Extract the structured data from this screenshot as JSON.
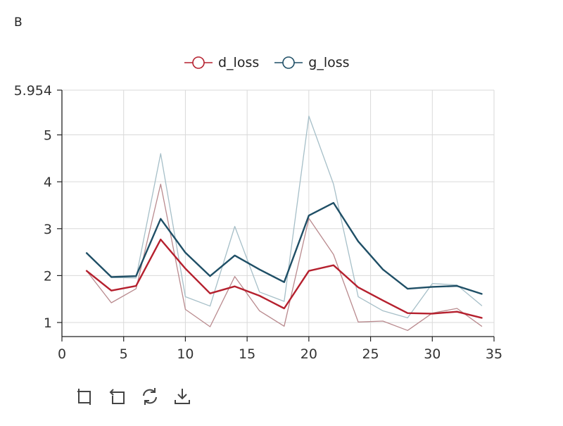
{
  "panel_label": "B",
  "toolbar": {
    "icons": [
      "box-zoom-icon",
      "box-select-icon",
      "reset-icon",
      "save-icon"
    ]
  },
  "colors": {
    "d_loss": "#b5202e",
    "g_loss": "#1f4f66",
    "raw_d": "#b98a8e",
    "raw_g": "#a6bfc8",
    "grid": "#d9d9d9",
    "axis": "#222222"
  },
  "chart_data": {
    "type": "line",
    "title": "",
    "xlabel": "",
    "ylabel": "",
    "xlim": [
      0,
      35
    ],
    "ylim": [
      0.7,
      5.954
    ],
    "x_ticks": [
      "0",
      "5",
      "10",
      "15",
      "20",
      "25",
      "30",
      "35"
    ],
    "y_ticks": [
      "1",
      "2",
      "3",
      "4",
      "5",
      "5.954"
    ],
    "grid": true,
    "legend_position": "top",
    "x": [
      2,
      4,
      6,
      8,
      10,
      12,
      14,
      16,
      18,
      20,
      22,
      24,
      26,
      28,
      30,
      32,
      34
    ],
    "series": [
      {
        "name": "d_loss",
        "smoothed": [
          2.1,
          1.68,
          1.78,
          2.77,
          2.15,
          1.62,
          1.77,
          1.57,
          1.3,
          2.1,
          2.22,
          1.75,
          1.47,
          1.2,
          1.19,
          1.23,
          1.1
        ],
        "raw": [
          2.1,
          1.42,
          1.72,
          3.95,
          1.28,
          0.91,
          1.98,
          1.25,
          0.92,
          3.22,
          2.45,
          1.01,
          1.03,
          0.83,
          1.2,
          1.3,
          0.92
        ]
      },
      {
        "name": "g_loss",
        "smoothed": [
          2.48,
          1.97,
          1.99,
          3.21,
          2.49,
          1.99,
          2.43,
          2.13,
          1.86,
          3.28,
          3.55,
          2.73,
          2.13,
          1.72,
          1.76,
          1.78,
          1.61
        ],
        "raw": [
          2.48,
          1.96,
          1.95,
          4.6,
          1.55,
          1.35,
          3.05,
          1.65,
          1.45,
          5.4,
          3.95,
          1.55,
          1.25,
          1.1,
          1.83,
          1.8,
          1.36
        ]
      }
    ]
  }
}
